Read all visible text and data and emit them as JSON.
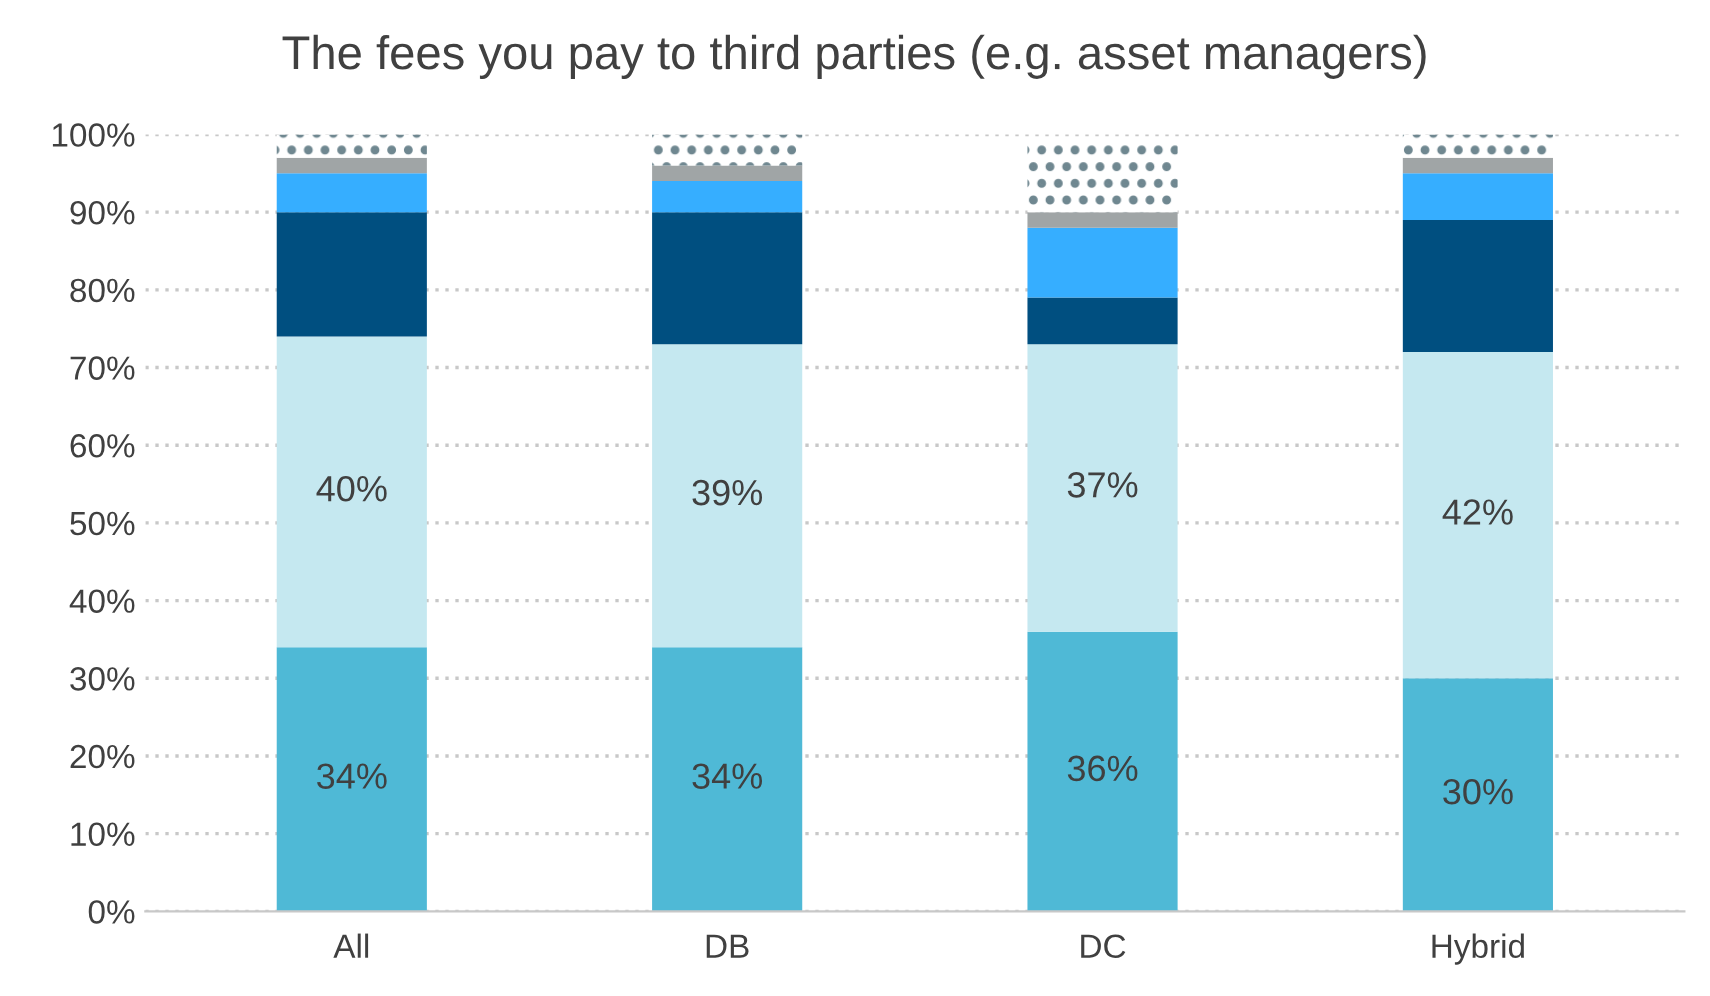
{
  "chart_data": {
    "type": "bar",
    "title": "The fees you pay to third parties (e.g. asset managers)",
    "categories": [
      "All",
      "DB",
      "DC",
      "Hybrid"
    ],
    "stacked": true,
    "series": [
      {
        "color": "#4fb9d6",
        "values": [
          34,
          34,
          36,
          30
        ],
        "value_labels": [
          "34%",
          "34%",
          "36%",
          "30%"
        ]
      },
      {
        "color": "#c5e8f0",
        "values": [
          40,
          39,
          37,
          42
        ],
        "value_labels": [
          "40%",
          "39%",
          "37%",
          "42%"
        ]
      },
      {
        "color": "#004f80",
        "values": [
          16,
          17,
          6,
          17
        ]
      },
      {
        "color": "#36aeff",
        "values": [
          5,
          4,
          9,
          6
        ]
      },
      {
        "color": "#a0a5a6",
        "values": [
          2,
          2,
          2,
          2
        ]
      },
      {
        "color": "#6f8790",
        "values": [
          3,
          4,
          9,
          3
        ]
      }
    ],
    "ylim": [
      0,
      100
    ],
    "yticks": [
      {
        "value": 0,
        "label": "0%"
      },
      {
        "value": 10,
        "label": "10%"
      },
      {
        "value": 20,
        "label": "20%"
      },
      {
        "value": 30,
        "label": "30%"
      },
      {
        "value": 40,
        "label": "40%"
      },
      {
        "value": 50,
        "label": "50%"
      },
      {
        "value": 60,
        "label": "60%"
      },
      {
        "value": 70,
        "label": "70%"
      },
      {
        "value": 80,
        "label": "80%"
      },
      {
        "value": 90,
        "label": "90%"
      },
      {
        "value": 100,
        "label": "100%"
      }
    ],
    "grid": "y",
    "legend": false
  }
}
